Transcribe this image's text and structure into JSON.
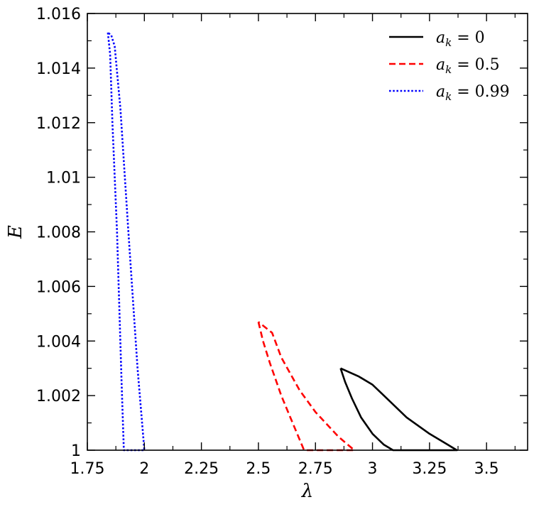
{
  "chart_data": {
    "type": "line",
    "xlabel": "λ",
    "ylabel": "E",
    "xlim": [
      1.75,
      3.68
    ],
    "ylim": [
      1.0,
      1.016
    ],
    "x_ticks": [
      1.75,
      2.0,
      2.25,
      2.5,
      2.75,
      3.0,
      3.25,
      3.5
    ],
    "x_tick_labels": [
      "1.75",
      "2",
      "2.25",
      "2.5",
      "2.75",
      "3",
      "3.25",
      "3.5"
    ],
    "y_ticks": [
      1.0,
      1.002,
      1.004,
      1.006,
      1.008,
      1.01,
      1.012,
      1.014,
      1.016
    ],
    "y_tick_labels": [
      "1",
      "1.002",
      "1.004",
      "1.006",
      "1.008",
      "1.01",
      "1.012",
      "1.014",
      "1.016"
    ],
    "grid": false,
    "legend_position": "top-right",
    "series": [
      {
        "name": "a_k = 0",
        "legend_base": "a",
        "legend_sub": "k",
        "legend_rest": " = 0",
        "color": "#000000",
        "dash": "solid",
        "x": [
          2.86,
          2.88,
          2.91,
          2.95,
          3.0,
          3.05,
          3.09,
          3.2,
          3.37,
          3.33,
          3.25,
          3.15,
          3.05,
          3.0,
          2.94,
          2.86
        ],
        "y": [
          1.003,
          1.0025,
          1.0019,
          1.0012,
          1.0006,
          1.0002,
          1.0,
          1.0,
          1.0,
          1.0002,
          1.0006,
          1.0012,
          1.002,
          1.0024,
          1.0027,
          1.003
        ]
      },
      {
        "name": "a_k = 0.5",
        "legend_base": "a",
        "legend_sub": "k",
        "legend_rest": " = 0.5",
        "color": "#ff0000",
        "dash": "dashed",
        "x": [
          2.5,
          2.52,
          2.55,
          2.6,
          2.65,
          2.7,
          2.8,
          2.92,
          2.85,
          2.75,
          2.68,
          2.6,
          2.56,
          2.5
        ],
        "y": [
          1.0047,
          1.004,
          1.0032,
          1.002,
          1.001,
          1.0,
          1.0,
          1.0,
          1.0005,
          1.0014,
          1.0022,
          1.0034,
          1.0043,
          1.0047
        ],
        "x_close": [
          2.5
        ]
      },
      {
        "name": "a_k = 0.99",
        "legend_base": "a",
        "legend_sub": "k",
        "legend_rest": " = 0.99",
        "color": "#0000ff",
        "dash": "dotted",
        "x": [
          1.84,
          1.85,
          1.86,
          1.88,
          1.9,
          1.91,
          1.96,
          2.0,
          1.97,
          1.93,
          1.895,
          1.87,
          1.855,
          1.84
        ],
        "y": [
          1.0153,
          1.0145,
          1.012,
          1.008,
          1.0025,
          1.0,
          1.0,
          1.0,
          1.003,
          1.008,
          1.0125,
          1.0148,
          1.0152,
          1.0153
        ]
      }
    ]
  }
}
